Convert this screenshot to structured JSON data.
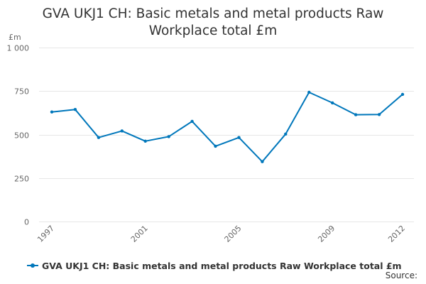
{
  "colors": {
    "series": "#0077bb",
    "grid": "#e6e6e6",
    "axis_text": "#666666",
    "title_text": "#333333"
  },
  "chart_data": {
    "type": "line",
    "title_lines": [
      "GVA UKJ1 CH: Basic metals and metal products Raw",
      "Workplace total £m"
    ],
    "y_unit": "£m",
    "ylim": [
      0,
      1000
    ],
    "y_ticks": [
      0,
      250,
      500,
      750,
      1000
    ],
    "y_tick_labels": [
      "0",
      "250",
      "500",
      "750",
      "1 000"
    ],
    "x_tick_labels": [
      "1997",
      "2001",
      "2005",
      "2009",
      "2012"
    ],
    "grid": "horizontal",
    "legend_position": "bottom-left",
    "x": [
      1997,
      1998,
      1999,
      2000,
      2001,
      2002,
      2003,
      2004,
      2005,
      2006,
      2007,
      2008,
      2009,
      2010,
      2011,
      2012
    ],
    "series": [
      {
        "name": "GVA UKJ1 CH: Basic metals and metal products Raw Workplace total £m",
        "values": [
          630,
          644,
          483,
          521,
          462,
          488,
          576,
          433,
          483,
          344,
          503,
          743,
          682,
          614,
          615,
          731
        ]
      }
    ]
  },
  "footer": {
    "source_label": "Source:"
  }
}
